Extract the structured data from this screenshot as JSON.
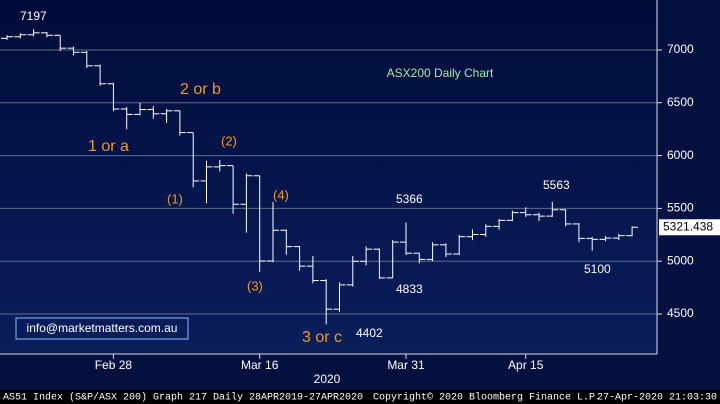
{
  "chart_data": {
    "type": "ohlc",
    "title": "ASX200 Daily Chart",
    "categories": [
      null,
      null,
      null,
      null,
      null,
      null,
      null,
      null,
      "Feb 28",
      null,
      null,
      null,
      null,
      null,
      null,
      null,
      null,
      null,
      null,
      "Mar 16",
      null,
      null,
      null,
      null,
      null,
      null,
      null,
      null,
      null,
      null,
      "Mar 31",
      null,
      null,
      null,
      null,
      null,
      null,
      null,
      null,
      "Apr 15",
      null,
      null,
      null,
      null,
      null,
      null,
      null,
      null
    ],
    "x_label": "2020",
    "open": [
      7110,
      7125,
      7144,
      7162,
      7139,
      7017,
      6978,
      6850,
      6680,
      6441,
      6390,
      6436,
      6396,
      6424,
      6218,
      5760,
      5893,
      5905,
      5539,
      5809,
      5002,
      5293,
      5138,
      4953,
      4817,
      4546,
      4776,
      4999,
      5114,
      4842,
      5181,
      5076,
      5017,
      5155,
      5068,
      5232,
      5253,
      5330,
      5387,
      5460,
      5440,
      5427,
      5487,
      5353,
      5216,
      5207,
      5219,
      5242
    ],
    "high": [
      7140,
      7160,
      7197,
      7170,
      7139,
      7030,
      6990,
      6860,
      6690,
      6460,
      6500,
      6470,
      6440,
      6424,
      6218,
      5950,
      5960,
      5905,
      5830,
      5809,
      5560,
      5300,
      5145,
      5050,
      4830,
      4800,
      5050,
      5140,
      5120,
      5200,
      5366,
      5080,
      5180,
      5170,
      5250,
      5300,
      5350,
      5400,
      5480,
      5510,
      5460,
      5563,
      5490,
      5360,
      5230,
      5240,
      5260,
      5330
    ],
    "low": [
      7095,
      7110,
      7130,
      7120,
      6990,
      6950,
      6830,
      6660,
      6420,
      6250,
      6380,
      6350,
      6310,
      6190,
      5700,
      5550,
      5850,
      5450,
      5270,
      4900,
      4990,
      5060,
      4910,
      4790,
      4402,
      4520,
      4760,
      4960,
      4833,
      4840,
      5060,
      4980,
      5000,
      5040,
      5060,
      5200,
      5230,
      5300,
      5380,
      5420,
      5380,
      5420,
      5330,
      5180,
      5100,
      5190,
      5200,
      5235
    ],
    "close": [
      7125,
      7144,
      7162,
      7139,
      7017,
      6978,
      6850,
      6680,
      6441,
      6390,
      6436,
      6396,
      6424,
      6218,
      5760,
      5893,
      5905,
      5539,
      5809,
      5002,
      5293,
      5138,
      4953,
      4817,
      4546,
      4776,
      4999,
      5114,
      4842,
      5181,
      5076,
      5017,
      5155,
      5068,
      5232,
      5253,
      5330,
      5387,
      5460,
      5440,
      5427,
      5487,
      5353,
      5216,
      5207,
      5219,
      5242,
      5321.438
    ],
    "color": "#ffffff",
    "ylim": [
      4131,
      7473
    ],
    "yticks": [
      4500,
      5000,
      5500,
      6000,
      6500,
      7000
    ],
    "grid": true,
    "annotations": [
      "7197",
      "2 or b",
      "1 or  a",
      "(2)",
      "(1)",
      "(4)",
      "(3)",
      "3 or c",
      "4402",
      "5366",
      "4833",
      "5563",
      "5100"
    ],
    "source": "info@marketmatters.com.au"
  },
  "footer": {
    "left": "AS51 Index (S&P/ASX 200) Graph 217  Daily 28APR2019-27APR2020",
    "center": "Copyright© 2020 Bloomberg Finance L.P.",
    "right": "27-Apr-2020 21:03:30"
  }
}
